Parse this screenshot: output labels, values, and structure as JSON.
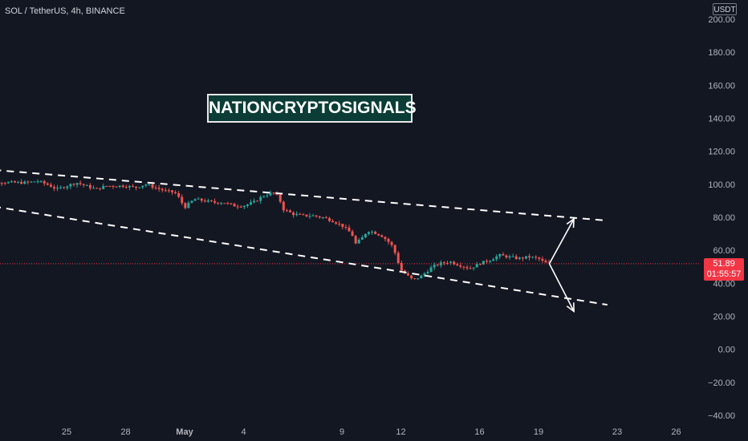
{
  "header": {
    "symbol": "SOL / TetherUS, 4h, BINANCE",
    "currency": "USDT"
  },
  "watermark": {
    "text": "NATIONCRYPTOSIGNALS"
  },
  "price_tag": {
    "price": "51.89",
    "countdown": "01:55:57"
  },
  "colors": {
    "background": "#131722",
    "up": "#26a69a",
    "down": "#ef5350",
    "axis_text": "#b2b5be",
    "current_price_line": "#f23645",
    "channel_lines": "#ffffff"
  },
  "chart_data": {
    "type": "candlestick",
    "timeframe": "4h",
    "y_axis": {
      "ticks": [
        "200.00",
        "180.00",
        "160.00",
        "140.00",
        "120.00",
        "100.00",
        "80.00",
        "60.00",
        "40.00",
        "20.00",
        "0.00",
        "−20.00",
        "−40.00"
      ],
      "tick_values": [
        200,
        180,
        160,
        140,
        120,
        100,
        80,
        60,
        40,
        20,
        0,
        -20,
        -40
      ],
      "ylim": [
        -40,
        200
      ]
    },
    "x_axis": {
      "ticks": [
        "25",
        "28",
        "May",
        "4",
        "9",
        "12",
        "16",
        "19",
        "23",
        "26"
      ],
      "tick_days": [
        -6,
        -3,
        0,
        3,
        8,
        11,
        15,
        18,
        22,
        25
      ]
    },
    "current_price": 51.89,
    "price_path": [
      [
        -10.8,
        104
      ],
      [
        -10,
        102
      ],
      [
        -9,
        101
      ],
      [
        -8,
        101
      ],
      [
        -7.5,
        102
      ],
      [
        -7,
        100
      ],
      [
        -6.5,
        97
      ],
      [
        -6,
        99
      ],
      [
        -5.5,
        101
      ],
      [
        -5,
        99
      ],
      [
        -4.5,
        97
      ],
      [
        -4,
        99
      ],
      [
        -3.5,
        99
      ],
      [
        -3,
        99
      ],
      [
        -2.5,
        98
      ],
      [
        -2,
        100
      ],
      [
        -1.5,
        98
      ],
      [
        -1,
        96
      ],
      [
        -0.5,
        95
      ],
      [
        -0.3,
        92
      ],
      [
        0,
        86
      ],
      [
        0.5,
        91
      ],
      [
        1,
        90
      ],
      [
        1.5,
        89
      ],
      [
        2,
        89
      ],
      [
        2.5,
        87
      ],
      [
        3,
        87
      ],
      [
        3.5,
        89
      ],
      [
        4,
        93
      ],
      [
        4.5,
        95
      ],
      [
        4.8,
        92
      ],
      [
        5,
        85
      ],
      [
        5.5,
        82
      ],
      [
        6,
        81
      ],
      [
        6.5,
        81
      ],
      [
        7,
        80
      ],
      [
        7.5,
        78
      ],
      [
        8,
        75
      ],
      [
        8.5,
        70
      ],
      [
        8.7,
        64
      ],
      [
        9,
        67
      ],
      [
        9.3,
        72
      ],
      [
        9.6,
        71
      ],
      [
        10,
        69
      ],
      [
        10.3,
        66
      ],
      [
        10.6,
        62
      ],
      [
        10.8,
        55
      ],
      [
        11,
        48
      ],
      [
        11.3,
        45
      ],
      [
        11.6,
        42
      ],
      [
        12,
        44
      ],
      [
        12.3,
        47
      ],
      [
        12.6,
        50
      ],
      [
        13,
        52
      ],
      [
        13.5,
        53
      ],
      [
        14,
        51
      ],
      [
        14.5,
        49
      ],
      [
        15,
        52
      ],
      [
        15.5,
        54
      ],
      [
        16,
        57
      ],
      [
        16.5,
        56
      ],
      [
        17,
        55
      ],
      [
        17.5,
        56
      ],
      [
        18,
        55
      ],
      [
        18.3,
        52.5
      ],
      [
        18.55,
        51.89
      ]
    ],
    "channel": {
      "upper": {
        "start": [
          -11,
          110
        ],
        "end": [
          21.5,
          78
        ]
      },
      "lower": {
        "start": [
          -11,
          89
        ],
        "end": [
          21.5,
          27
        ]
      }
    },
    "projection_arrows": [
      {
        "from": [
          18.55,
          51.89
        ],
        "to": [
          19.8,
          79
        ]
      },
      {
        "from": [
          18.55,
          51.89
        ],
        "to": [
          19.8,
          23
        ]
      }
    ]
  }
}
